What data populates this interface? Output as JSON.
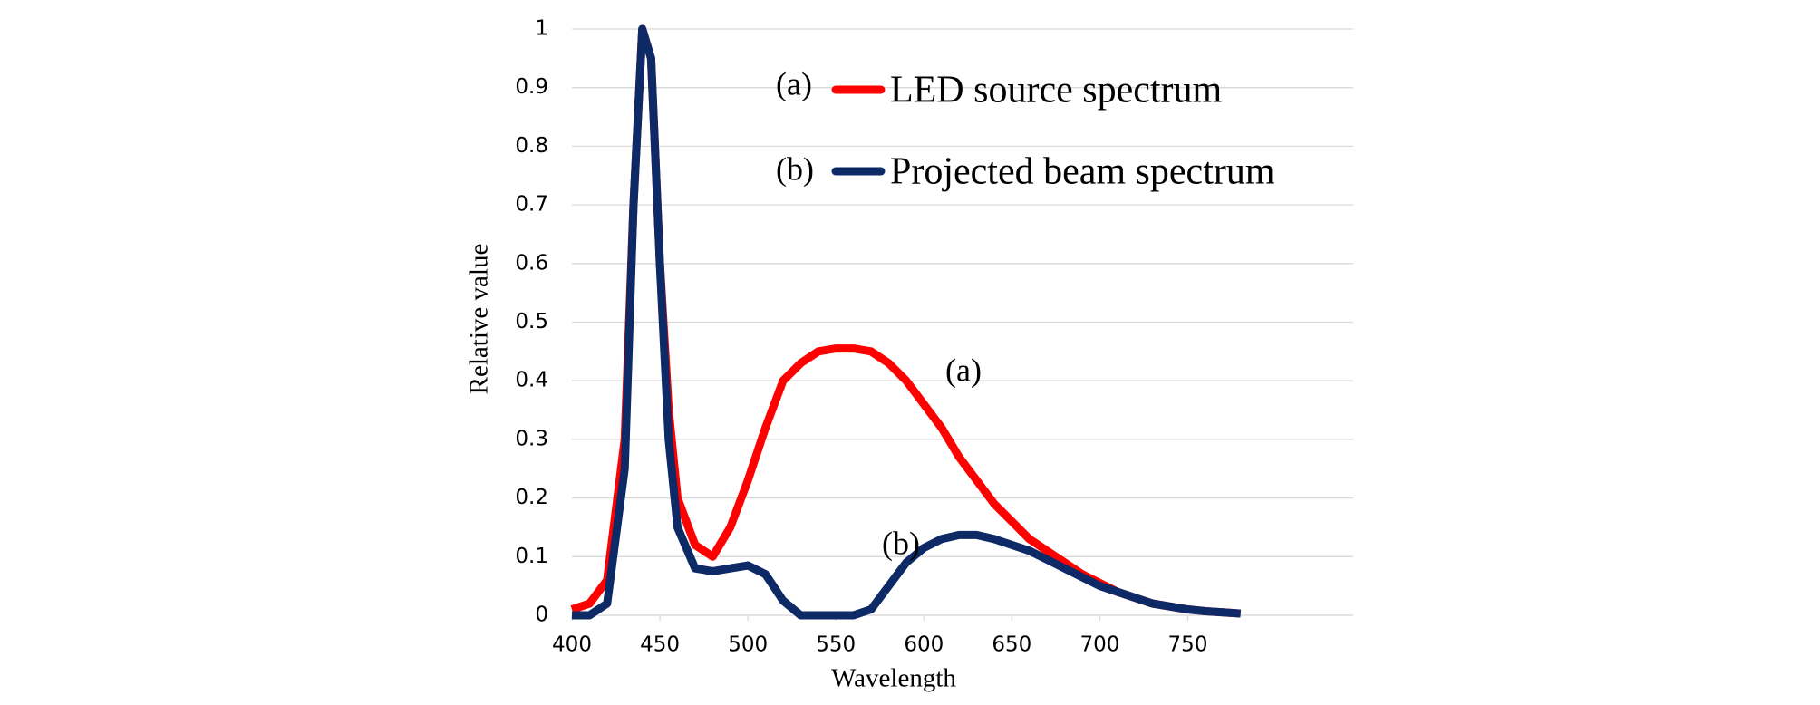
{
  "chart_data": {
    "type": "line",
    "x_label": "Wavelength",
    "y_label": "Relative value",
    "x": [
      400,
      410,
      420,
      430,
      435,
      440,
      445,
      450,
      455,
      460,
      470,
      480,
      490,
      500,
      510,
      520,
      530,
      540,
      550,
      560,
      570,
      580,
      590,
      600,
      610,
      620,
      630,
      640,
      650,
      660,
      670,
      680,
      690,
      700,
      710,
      720,
      730,
      740,
      750,
      760,
      770,
      780
    ],
    "series": [
      {
        "name": "LED source spectrum",
        "color": "#ff0000",
        "values": [
          0.01,
          0.02,
          0.06,
          0.3,
          0.7,
          1.0,
          0.95,
          0.6,
          0.35,
          0.2,
          0.12,
          0.1,
          0.15,
          0.23,
          0.32,
          0.4,
          0.43,
          0.45,
          0.455,
          0.455,
          0.45,
          0.43,
          0.4,
          0.36,
          0.32,
          0.27,
          0.23,
          0.19,
          0.16,
          0.13,
          0.11,
          0.09,
          0.07,
          0.055,
          0.04,
          0.03,
          0.02,
          0.015,
          0.01,
          0.007,
          0.005,
          0.003
        ]
      },
      {
        "name": "Projected beam spectrum",
        "color": "#0d2a66",
        "values": [
          0,
          0,
          0.02,
          0.25,
          0.7,
          1.0,
          0.95,
          0.6,
          0.3,
          0.15,
          0.08,
          0.075,
          0.08,
          0.085,
          0.07,
          0.025,
          0,
          0,
          0,
          0,
          0.01,
          0.05,
          0.09,
          0.115,
          0.13,
          0.137,
          0.137,
          0.13,
          0.12,
          0.11,
          0.095,
          0.08,
          0.065,
          0.05,
          0.04,
          0.03,
          0.02,
          0.015,
          0.01,
          0.007,
          0.005,
          0.003
        ]
      }
    ],
    "annotations": [
      "(a)",
      "(b)",
      "(a)",
      "(b)"
    ],
    "xlim": [
      400,
      844
    ],
    "xticks": [
      400,
      450,
      500,
      550,
      600,
      650,
      700,
      750
    ],
    "ylim": [
      0,
      1
    ],
    "yticks": [
      0,
      0.1,
      0.2,
      0.3,
      0.4,
      0.5,
      0.6,
      0.7,
      0.8,
      0.9,
      1
    ],
    "grid": true
  }
}
